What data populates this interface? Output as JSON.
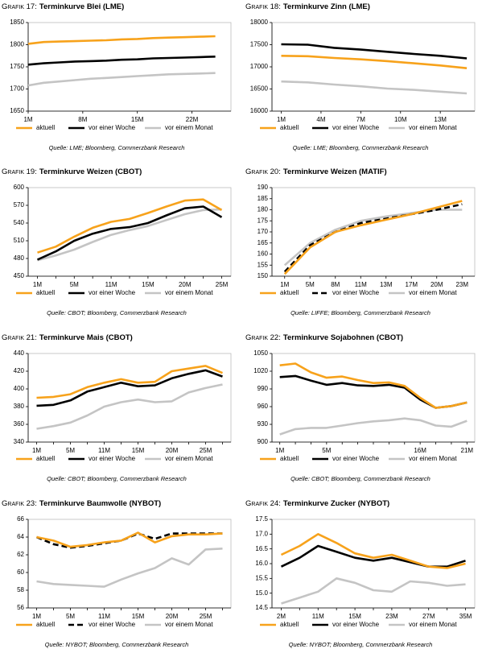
{
  "chart_data": [
    {
      "type": "line",
      "label": "Grafik 17:",
      "title": "Terminkurve Blei (LME)",
      "source": "Quelle: LME; Bloomberg, Commerzbank Research",
      "x": [
        1,
        3,
        5,
        7,
        9,
        11,
        13,
        15,
        17,
        19,
        21,
        23,
        25
      ],
      "xlim": [
        1,
        27
      ],
      "xticks": [
        {
          "value": 1,
          "label": "1M"
        },
        {
          "value": 8,
          "label": "8M"
        },
        {
          "value": 15,
          "label": "15M"
        },
        {
          "value": 22,
          "label": "22M"
        }
      ],
      "ylim": [
        1650,
        1850
      ],
      "yticks": [
        1650,
        1700,
        1750,
        1800,
        1850
      ],
      "series": [
        {
          "name": "aktuell",
          "color": "#f7a21b",
          "values": [
            1802,
            1806,
            1807,
            1808,
            1809,
            1810,
            1812,
            1813,
            1815,
            1816,
            1817,
            1818,
            1819
          ]
        },
        {
          "name": "vor einer Woche",
          "color": "#000000",
          "values": [
            1755,
            1758,
            1760,
            1762,
            1763,
            1764,
            1766,
            1767,
            1769,
            1770,
            1771,
            1772,
            1773
          ]
        },
        {
          "name": "vor einem Monat",
          "color": "#c4c4c4",
          "values": [
            1708,
            1714,
            1717,
            1720,
            1723,
            1725,
            1727,
            1729,
            1731,
            1733,
            1734,
            1735,
            1736
          ]
        }
      ]
    },
    {
      "type": "line",
      "label": "Grafik 18:",
      "title": "Terminkurve Zinn (LME)",
      "source": "Quelle: LME; Bloomberg, Commerzbank Research",
      "x": [
        1,
        3,
        5,
        7,
        9,
        11,
        13,
        15
      ],
      "xlim": [
        0.3,
        15.6
      ],
      "xticks": [
        {
          "value": 1,
          "label": "1M"
        },
        {
          "value": 4,
          "label": "4M"
        },
        {
          "value": 7,
          "label": "7M"
        },
        {
          "value": 10,
          "label": "10M"
        },
        {
          "value": 13,
          "label": "13M"
        }
      ],
      "ylim": [
        16000,
        18000
      ],
      "yticks": [
        16000,
        16500,
        17000,
        17500,
        18000
      ],
      "series": [
        {
          "name": "aktuell",
          "color": "#f7a21b",
          "values": [
            17250,
            17240,
            17200,
            17170,
            17130,
            17080,
            17030,
            16970
          ]
        },
        {
          "name": "vor einer Woche",
          "color": "#000000",
          "values": [
            17510,
            17500,
            17430,
            17390,
            17340,
            17290,
            17250,
            17190
          ]
        },
        {
          "name": "vor einem Monat",
          "color": "#c4c4c4",
          "values": [
            16670,
            16650,
            16600,
            16560,
            16510,
            16480,
            16440,
            16400
          ]
        }
      ]
    },
    {
      "type": "line",
      "label": "Grafik 19:",
      "title": "Terminkurve Weizen (CBOT)",
      "source": "Quelle: CBOT; Bloomberg, Commerzbank Research",
      "categories": [
        "1M",
        null,
        "5M",
        null,
        "11M",
        null,
        "15M",
        null,
        "20M",
        null,
        "25M"
      ],
      "ylim": [
        450,
        600
      ],
      "yticks": [
        450,
        480,
        510,
        540,
        570,
        600
      ],
      "series": [
        {
          "name": "aktuell",
          "color": "#f7a21b",
          "values": [
            490,
            500,
            517,
            532,
            542,
            547,
            557,
            568,
            578,
            580,
            562
          ]
        },
        {
          "name": "vor einer Woche",
          "color": "#000000",
          "values": [
            478,
            492,
            510,
            522,
            530,
            533,
            540,
            553,
            565,
            568,
            550
          ]
        },
        {
          "name": "vor einem Monat",
          "color": "#c4c4c4",
          "values": [
            477,
            485,
            495,
            508,
            520,
            528,
            535,
            545,
            555,
            562,
            563
          ]
        }
      ]
    },
    {
      "type": "line",
      "label": "Grafik 20:",
      "title": "Terminkurve Weizen (MATIF)",
      "source": "Quelle: LIFFE; Bloomberg, Commerzbank Research",
      "categories": [
        "1M",
        "5M",
        "8M",
        "11M",
        "13M",
        "17M",
        "20M",
        "23M"
      ],
      "ylim": [
        150,
        190
      ],
      "yticks": [
        150,
        155,
        160,
        165,
        170,
        175,
        180,
        185,
        190
      ],
      "series": [
        {
          "name": "aktuell",
          "color": "#f7a21b",
          "values": [
            151,
            163,
            170,
            173,
            175.5,
            178,
            181,
            184
          ]
        },
        {
          "name": "vor einer Woche",
          "color": "#000000",
          "dash": true,
          "values": [
            152,
            164,
            170,
            174,
            176,
            178,
            180,
            182.5
          ]
        },
        {
          "name": "vor einem Monat",
          "color": "#c4c4c4",
          "values": [
            155,
            165,
            171,
            175,
            177,
            178.5,
            180,
            180
          ]
        }
      ]
    },
    {
      "type": "line",
      "label": "Grafik 21:",
      "title": "Terminkurve Mais (CBOT)",
      "source": "Quelle: CBOT; Bloomberg, Commerzbank Research",
      "categories": [
        "1M",
        null,
        "5M",
        null,
        "11M",
        null,
        "15M",
        null,
        "20M",
        null,
        "25M",
        null
      ],
      "ylim": [
        340,
        440
      ],
      "yticks": [
        340,
        360,
        380,
        400,
        420,
        440
      ],
      "series": [
        {
          "name": "aktuell",
          "color": "#f7a21b",
          "values": [
            390,
            391,
            394,
            402,
            407,
            411,
            407,
            408,
            420,
            423,
            426,
            418
          ]
        },
        {
          "name": "vor einer Woche",
          "color": "#000000",
          "values": [
            381,
            382,
            387,
            397,
            402,
            407,
            403,
            404,
            412,
            417,
            421,
            414
          ]
        },
        {
          "name": "vor einem Monat",
          "color": "#c4c4c4",
          "values": [
            355,
            358,
            362,
            370,
            380,
            385,
            388,
            385,
            386,
            396,
            401,
            405
          ]
        }
      ]
    },
    {
      "type": "line",
      "label": "Grafik 22:",
      "title": "Terminkurve Sojabohnen (CBOT)",
      "source": "Quelle: CBOT; Bloomberg, Commerzbank Research",
      "categories": [
        "1M",
        null,
        null,
        "5M",
        null,
        null,
        null,
        null,
        null,
        "16M",
        null,
        null,
        "21M"
      ],
      "ylim": [
        900,
        1050
      ],
      "yticks": [
        900,
        930,
        960,
        990,
        1020,
        1050
      ],
      "series": [
        {
          "name": "aktuell",
          "color": "#f7a21b",
          "values": [
            1030,
            1033,
            1018,
            1009,
            1011,
            1005,
            1000,
            1001,
            995,
            975,
            958,
            961,
            967
          ]
        },
        {
          "name": "vor einer Woche",
          "color": "#000000",
          "values": [
            1010,
            1012,
            1004,
            997,
            1000,
            996,
            995,
            997,
            992,
            972,
            958,
            961,
            967
          ]
        },
        {
          "name": "vor einem Monat",
          "color": "#c4c4c4",
          "values": [
            913,
            922,
            924,
            924,
            928,
            932,
            935,
            937,
            940,
            937,
            928,
            926,
            936
          ]
        }
      ]
    },
    {
      "type": "line",
      "label": "Grafik 23:",
      "title": "Terminkurve Baumwolle (NYBOT)",
      "source": "Quelle: NYBOT; Bloomberg, Commerzbank Research",
      "categories": [
        "1M",
        null,
        "5M",
        null,
        "11M",
        null,
        "15M",
        null,
        "20M",
        null,
        "25M",
        null
      ],
      "ylim": [
        56,
        66
      ],
      "yticks": [
        56,
        58,
        60,
        62,
        64,
        66
      ],
      "series": [
        {
          "name": "aktuell",
          "color": "#f7a21b",
          "values": [
            64.0,
            63.6,
            62.9,
            63.1,
            63.4,
            63.6,
            64.5,
            63.4,
            64.1,
            64.3,
            64.3,
            64.4
          ]
        },
        {
          "name": "vor einer Woche",
          "color": "#000000",
          "dash": true,
          "values": [
            64.0,
            63.2,
            62.8,
            63.0,
            63.3,
            63.6,
            64.4,
            63.8,
            64.4,
            64.4,
            64.4,
            64.4
          ]
        },
        {
          "name": "vor einem Monat",
          "color": "#c4c4c4",
          "values": [
            59.0,
            58.7,
            58.6,
            58.5,
            58.4,
            59.2,
            59.9,
            60.5,
            61.6,
            60.9,
            62.6,
            62.7
          ]
        }
      ]
    },
    {
      "type": "line",
      "label": "Grafik 24:",
      "title": "Terminkurve Zucker (NYBOT)",
      "source": "Quelle: NYBOT; Bloomberg, Commerzbank Research",
      "categories": [
        "2M",
        null,
        "11M",
        null,
        "15M",
        null,
        "23M",
        null,
        "27M",
        null,
        "35M"
      ],
      "ylim": [
        14.5,
        17.5
      ],
      "yticks": [
        14.5,
        {
          "value": 15,
          "label": "15.0"
        },
        15.5,
        {
          "value": 16,
          "label": "16.0"
        },
        16.5,
        {
          "value": 17,
          "label": "17.0"
        },
        17.5
      ],
      "series": [
        {
          "name": "aktuell",
          "color": "#f7a21b",
          "values": [
            16.3,
            16.6,
            17.0,
            16.7,
            16.35,
            16.2,
            16.3,
            16.1,
            15.9,
            15.85,
            16.0
          ]
        },
        {
          "name": "vor einer Woche",
          "color": "#000000",
          "values": [
            15.9,
            16.2,
            16.6,
            16.4,
            16.2,
            16.1,
            16.2,
            16.05,
            15.9,
            15.9,
            16.1
          ]
        },
        {
          "name": "vor einem Monat",
          "color": "#c4c4c4",
          "values": [
            14.65,
            14.85,
            15.05,
            15.5,
            15.35,
            15.1,
            15.05,
            15.4,
            15.35,
            15.25,
            15.3
          ]
        }
      ]
    }
  ]
}
